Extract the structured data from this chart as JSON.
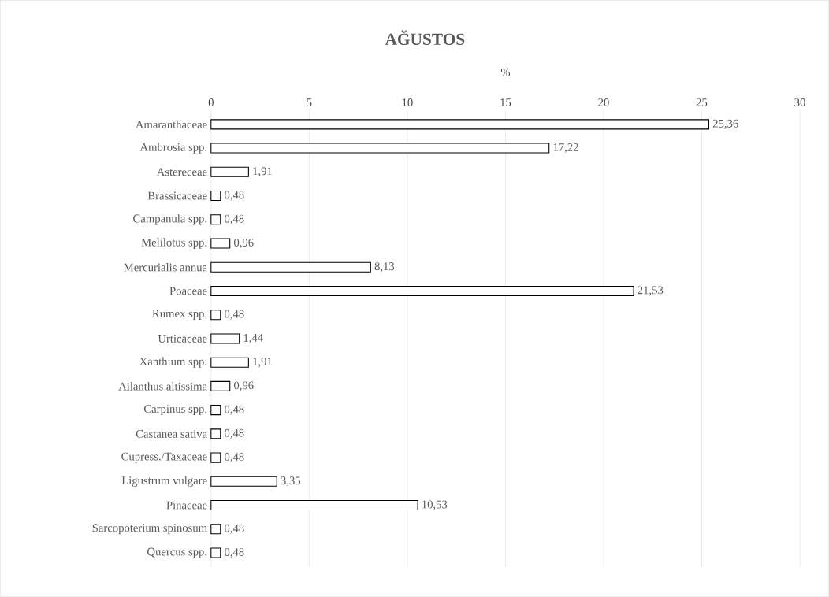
{
  "chart_data": {
    "type": "bar",
    "orientation": "horizontal",
    "title": "AĞUSTOS",
    "xlabel": "%",
    "categories": [
      "Amaranthaceae",
      "Ambrosia spp.",
      "Astereceae",
      "Brassicaceae",
      "Campanula spp.",
      "Melilotus spp.",
      "Mercurialis annua",
      "Poaceae",
      "Rumex spp.",
      "Urticaceae",
      "Xanthium spp.",
      "Ailanthus altissima",
      "Carpinus spp.",
      "Castanea sativa",
      "Cupress./Taxaceae",
      "Ligustrum vulgare",
      "Pinaceae",
      "Sarcopoterium spinosum",
      "Quercus spp."
    ],
    "values": [
      25.36,
      17.22,
      1.91,
      0.48,
      0.48,
      0.96,
      8.13,
      21.53,
      0.48,
      1.44,
      1.91,
      0.96,
      0.48,
      0.48,
      0.48,
      3.35,
      10.53,
      0.48,
      0.48
    ],
    "value_labels": [
      "25,36",
      "17,22",
      "1,91",
      "0,48",
      "0,48",
      "0,96",
      "8,13",
      "21,53",
      "0,48",
      "1,44",
      "1,91",
      "0,96",
      "0,48",
      "0,48",
      "0,48",
      "3,35",
      "10,53",
      "0,48",
      "0,48"
    ],
    "color": "#ffffff",
    "xlim": [
      0,
      30
    ],
    "xticks": [
      0,
      5,
      10,
      15,
      20,
      25,
      30
    ],
    "grid": "x"
  }
}
